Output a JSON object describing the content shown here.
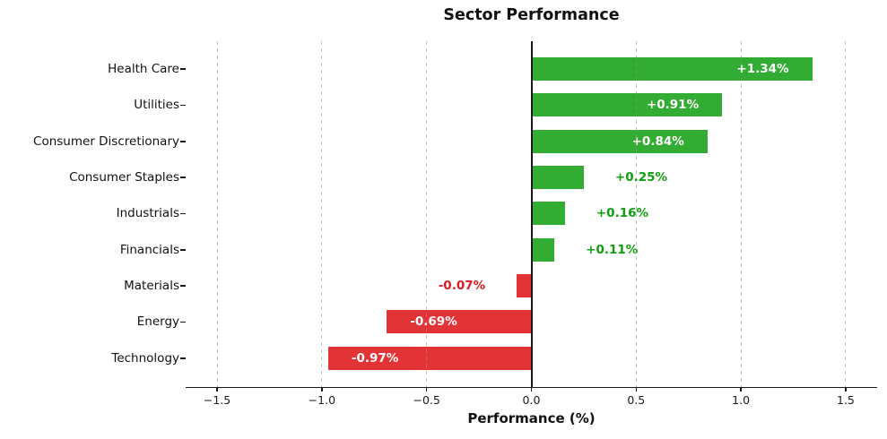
{
  "chart_data": {
    "type": "bar",
    "orientation": "horizontal",
    "title": "Sector Performance",
    "xlabel": "Performance (%)",
    "ylabel": "",
    "categories": [
      "Health Care",
      "Utilities",
      "Consumer Discretionary",
      "Consumer Staples",
      "Industrials",
      "Financials",
      "Materials",
      "Energy",
      "Technology"
    ],
    "values": [
      1.34,
      0.91,
      0.84,
      0.25,
      0.16,
      0.11,
      -0.07,
      -0.69,
      -0.97
    ],
    "value_labels": [
      "+1.34%",
      "+0.91%",
      "+0.84%",
      "+0.25%",
      "+0.16%",
      "+0.11%",
      "-0.07%",
      "-0.69%",
      "-0.97%"
    ],
    "xlim": [
      -1.65,
      1.65
    ],
    "xticks": [
      -1.5,
      -1.0,
      -0.5,
      0.0,
      0.5,
      1.0,
      1.5
    ],
    "xtick_labels": [
      "−1.5",
      "−1.0",
      "−0.5",
      "0.0",
      "0.5",
      "1.0",
      "1.5"
    ],
    "grid": {
      "axis": "x",
      "style": "dashed",
      "on": true
    },
    "legend": {
      "visible": false
    },
    "colors": {
      "positive_bar": "#32ac32",
      "negative_bar": "#e23336",
      "positive_outside_label": "#0d9f0d",
      "negative_outside_label": "#dd1a22",
      "inside_label": "#ffffff",
      "axis": "#1a1a1a",
      "gridline": "#969696",
      "background": "#ffffff"
    }
  }
}
